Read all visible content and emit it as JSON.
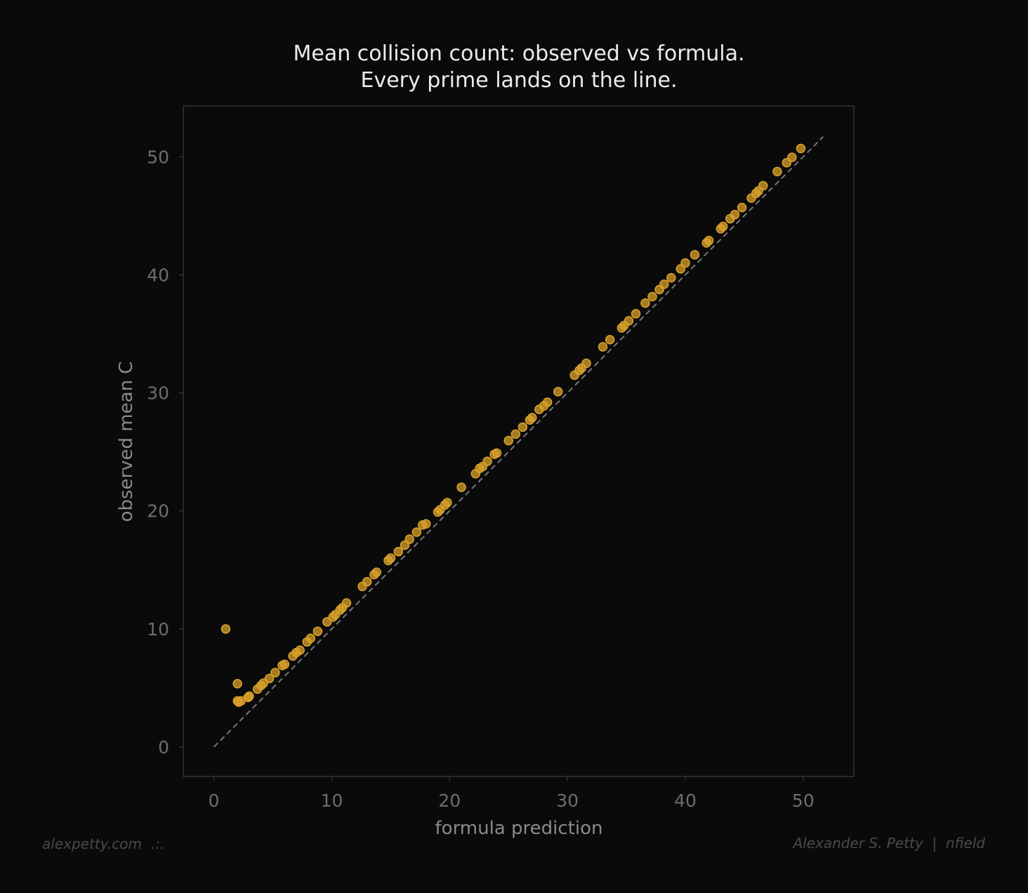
{
  "chart_data": {
    "type": "scatter",
    "title": [
      "Mean collision count: observed vs formula.",
      "Every prime lands on the line."
    ],
    "xlabel": "formula prediction",
    "ylabel": "observed mean C",
    "xlim": [
      -2.6,
      54.3
    ],
    "ylim": [
      -2.5,
      54.3
    ],
    "xticks": [
      0,
      10,
      20,
      30,
      40,
      50
    ],
    "yticks": [
      0,
      10,
      20,
      30,
      40,
      50
    ],
    "grid": false,
    "reference_line": {
      "style": "dashed",
      "from": [
        0,
        0
      ],
      "to": [
        51.7,
        51.7
      ],
      "color": "#777777"
    },
    "point_color": "#d9a12b",
    "background": "#0a0a0a",
    "points": [
      [
        1.0,
        10.0
      ],
      [
        2.0,
        5.36
      ],
      [
        2.0,
        3.9
      ],
      [
        2.1,
        3.8
      ],
      [
        2.3,
        3.9
      ],
      [
        2.9,
        4.2
      ],
      [
        3.0,
        4.3
      ],
      [
        3.7,
        4.9
      ],
      [
        4.0,
        5.2
      ],
      [
        4.2,
        5.4
      ],
      [
        4.7,
        5.8
      ],
      [
        5.2,
        6.3
      ],
      [
        5.8,
        6.9
      ],
      [
        6.0,
        7.0
      ],
      [
        6.7,
        7.7
      ],
      [
        7.0,
        8.0
      ],
      [
        7.3,
        8.2
      ],
      [
        7.9,
        8.9
      ],
      [
        8.2,
        9.2
      ],
      [
        8.8,
        9.8
      ],
      [
        9.6,
        10.6
      ],
      [
        10.1,
        11.0
      ],
      [
        10.3,
        11.2
      ],
      [
        10.7,
        11.6
      ],
      [
        10.9,
        11.8
      ],
      [
        11.25,
        12.2
      ],
      [
        12.6,
        13.6
      ],
      [
        13.0,
        14.0
      ],
      [
        13.6,
        14.6
      ],
      [
        13.8,
        14.8
      ],
      [
        14.8,
        15.8
      ],
      [
        15.0,
        16.0
      ],
      [
        15.65,
        16.55
      ],
      [
        16.2,
        17.1
      ],
      [
        16.6,
        17.6
      ],
      [
        17.2,
        18.2
      ],
      [
        17.7,
        18.8
      ],
      [
        18.0,
        18.9
      ],
      [
        19.0,
        19.9
      ],
      [
        19.2,
        20.1
      ],
      [
        19.6,
        20.5
      ],
      [
        19.8,
        20.7
      ],
      [
        21.0,
        22.0
      ],
      [
        22.2,
        23.15
      ],
      [
        22.55,
        23.6
      ],
      [
        22.8,
        23.75
      ],
      [
        23.2,
        24.2
      ],
      [
        23.8,
        24.8
      ],
      [
        24.0,
        24.9
      ],
      [
        25.0,
        25.95
      ],
      [
        25.6,
        26.5
      ],
      [
        26.2,
        27.1
      ],
      [
        26.8,
        27.7
      ],
      [
        27.0,
        27.9
      ],
      [
        27.6,
        28.6
      ],
      [
        28.0,
        28.9
      ],
      [
        28.3,
        29.2
      ],
      [
        29.2,
        30.1
      ],
      [
        30.6,
        31.5
      ],
      [
        31.0,
        31.9
      ],
      [
        31.2,
        32.1
      ],
      [
        31.6,
        32.5
      ],
      [
        33.0,
        33.9
      ],
      [
        33.6,
        34.5
      ],
      [
        34.6,
        35.5
      ],
      [
        34.8,
        35.7
      ],
      [
        35.2,
        36.1
      ],
      [
        35.8,
        36.7
      ],
      [
        36.6,
        37.6
      ],
      [
        37.2,
        38.15
      ],
      [
        37.8,
        38.75
      ],
      [
        38.2,
        39.2
      ],
      [
        38.8,
        39.75
      ],
      [
        39.6,
        40.5
      ],
      [
        40.0,
        41.0
      ],
      [
        40.8,
        41.7
      ],
      [
        41.8,
        42.7
      ],
      [
        42.0,
        42.9
      ],
      [
        43.0,
        43.9
      ],
      [
        43.2,
        44.1
      ],
      [
        43.8,
        44.75
      ],
      [
        44.2,
        45.1
      ],
      [
        44.8,
        45.7
      ],
      [
        45.6,
        46.5
      ],
      [
        46.0,
        46.9
      ],
      [
        46.2,
        47.1
      ],
      [
        46.6,
        47.55
      ],
      [
        47.8,
        48.75
      ],
      [
        48.6,
        49.5
      ],
      [
        49.05,
        49.95
      ],
      [
        49.8,
        50.7
      ]
    ]
  },
  "footer": {
    "left": "alexpetty.com  .:.",
    "right": "Alexander S. Petty  |  nfield"
  }
}
